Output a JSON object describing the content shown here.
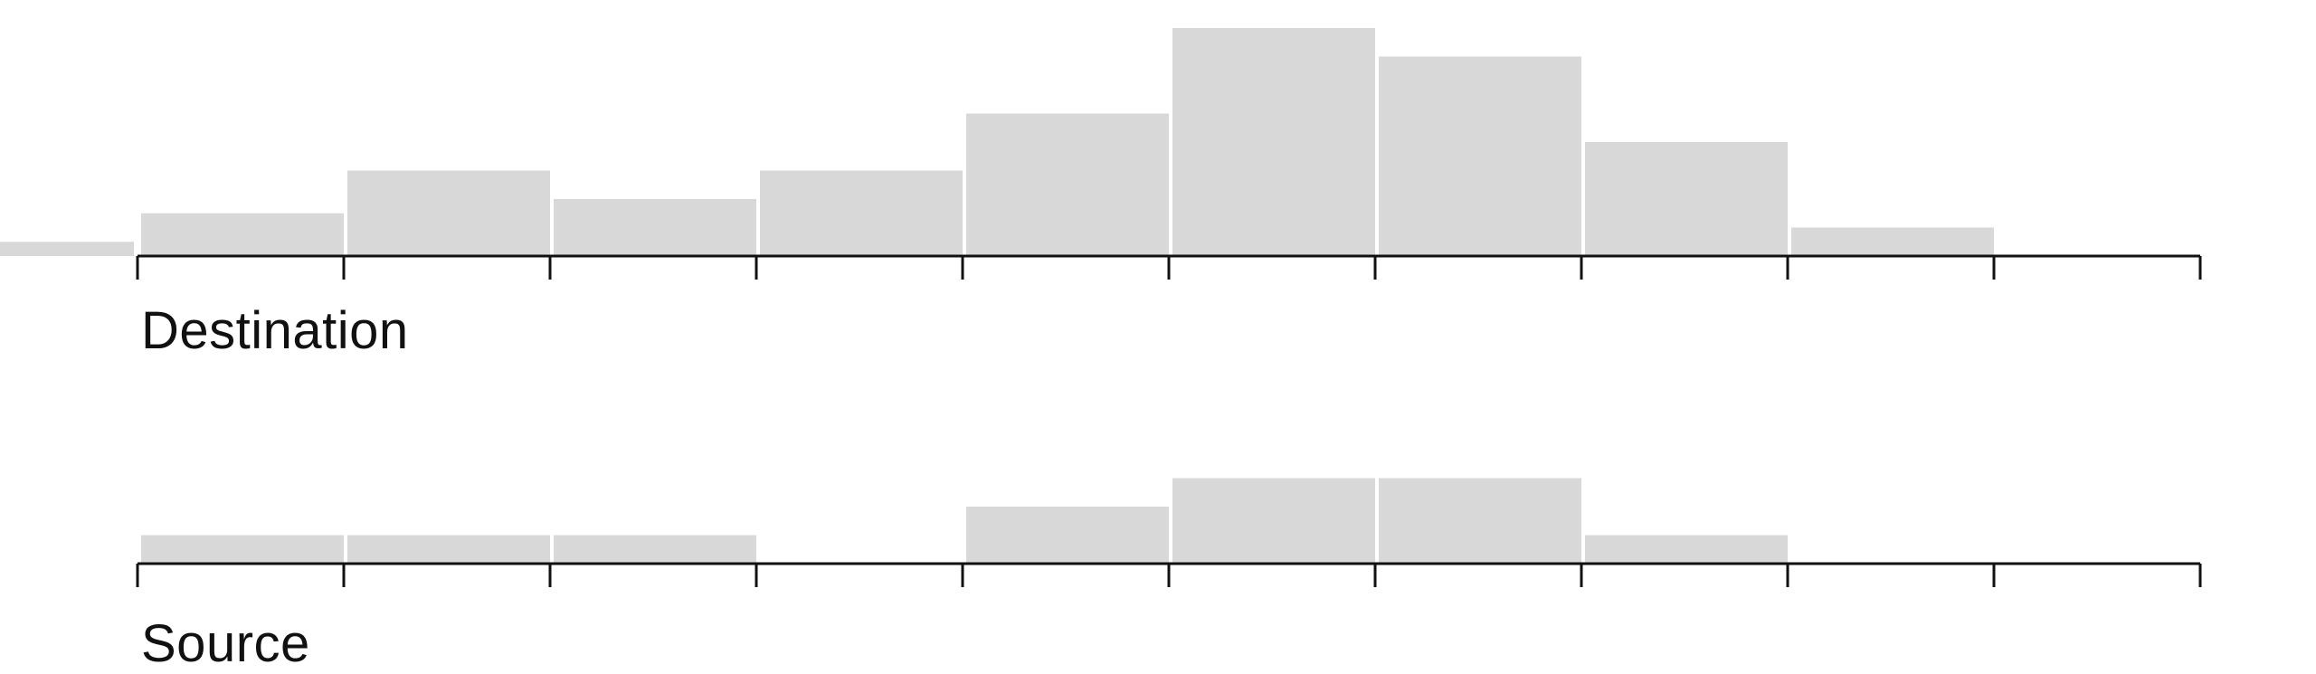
{
  "chart_data": [
    {
      "type": "bar",
      "id": "destination",
      "title": "Destination",
      "bin_count": 10,
      "values": [
        1.5,
        3,
        2,
        3,
        5,
        8,
        7,
        4,
        1,
        0
      ],
      "underflow_value": 1,
      "bar_color": "#d8d8d8",
      "axis_color": "#111111",
      "grid": false
    },
    {
      "type": "bar",
      "id": "source",
      "title": "Source",
      "bin_count": 10,
      "values": [
        1,
        1,
        1,
        0,
        2,
        3,
        3,
        1,
        0,
        0
      ],
      "underflow_value": 0,
      "bar_color": "#d8d8d8",
      "axis_color": "#111111",
      "grid": false
    }
  ]
}
